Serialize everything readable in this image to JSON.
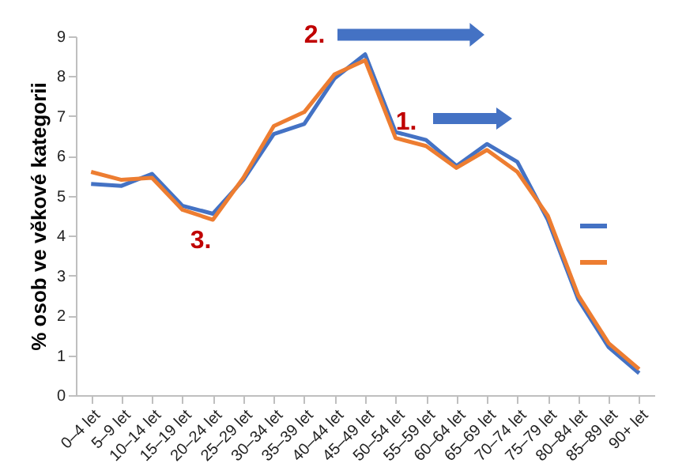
{
  "chart_data": {
    "type": "line",
    "ylabel": "% osob ve věkové kategorii",
    "categories": [
      "0–4 let",
      "5–9 let",
      "10–14 let",
      "15–19 let",
      "20–24 let",
      "25–29 let",
      "30–34 let",
      "35–39 let",
      "40–44 let",
      "45–49 let",
      "50–54 let",
      "55–59 let",
      "60–64 let",
      "65–69 let",
      "70–74 let",
      "75–79 let",
      "80–84 let",
      "85–89 let",
      "90+ let"
    ],
    "series": [
      {
        "color": "#4472c4",
        "values": [
          5.3,
          5.25,
          5.55,
          4.75,
          4.55,
          5.4,
          6.55,
          6.8,
          7.95,
          8.55,
          6.6,
          6.4,
          5.75,
          6.3,
          5.85,
          4.4,
          2.4,
          1.2,
          0.55
        ]
      },
      {
        "color": "#ed7d31",
        "values": [
          5.6,
          5.4,
          5.45,
          4.65,
          4.4,
          5.45,
          6.75,
          7.1,
          8.05,
          8.4,
          6.45,
          6.25,
          5.7,
          6.15,
          5.6,
          4.5,
          2.5,
          1.3,
          0.65
        ]
      }
    ],
    "ylim": [
      0,
      9
    ],
    "yticks": [
      0,
      1,
      2,
      3,
      4,
      5,
      6,
      7,
      8,
      9
    ],
    "grid": false,
    "marker": "none",
    "line_style": "solid",
    "annotations": [
      "1.",
      "2.",
      "3."
    ]
  }
}
